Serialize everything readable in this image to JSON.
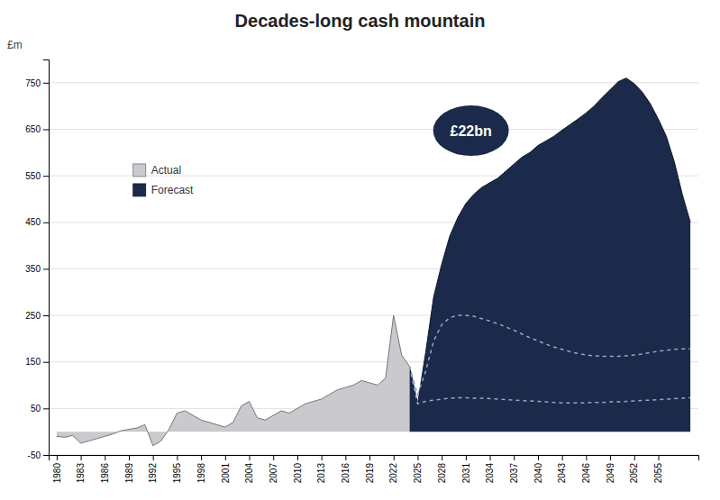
{
  "chart_data": {
    "type": "area",
    "title": "Decades-long cash mountain",
    "ylabel": "£m",
    "annotation": "£22bn",
    "xlim": [
      1979,
      2060
    ],
    "xticks": [
      1980,
      1983,
      1986,
      1989,
      1992,
      1995,
      1998,
      2001,
      2004,
      2007,
      2010,
      2013,
      2016,
      2019,
      2022,
      2025,
      2028,
      2031,
      2034,
      2037,
      2040,
      2043,
      2046,
      2049,
      2052,
      2055
    ],
    "ylim": [
      -50,
      800
    ],
    "yticks": [
      -50,
      50,
      150,
      250,
      350,
      450,
      550,
      650,
      750
    ],
    "grid": true,
    "legend": "upper left",
    "series": [
      {
        "name": "Actual",
        "type": "area",
        "color": "#c9c9ce",
        "x": [
          1980,
          1981,
          1982,
          1983,
          1984,
          1985,
          1986,
          1987,
          1988,
          1989,
          1990,
          1991,
          1992,
          1993,
          1994,
          1995,
          1996,
          1997,
          1998,
          1999,
          2000,
          2001,
          2002,
          2003,
          2004,
          2005,
          2006,
          2007,
          2008,
          2009,
          2010,
          2011,
          2012,
          2013,
          2014,
          2015,
          2016,
          2017,
          2018,
          2019,
          2020,
          2021,
          2022,
          2023,
          2024
        ],
        "values": [
          -10,
          -12,
          -8,
          -25,
          -20,
          -15,
          -10,
          -5,
          2,
          5,
          8,
          15,
          -30,
          -20,
          5,
          40,
          45,
          35,
          25,
          20,
          15,
          10,
          20,
          55,
          65,
          30,
          25,
          35,
          45,
          40,
          50,
          60,
          65,
          70,
          80,
          90,
          95,
          100,
          110,
          105,
          100,
          115,
          250,
          165,
          140
        ]
      },
      {
        "name": "Forecast",
        "type": "area",
        "color": "#1b2a4a",
        "x": [
          2024,
          2025,
          2026,
          2027,
          2028,
          2029,
          2030,
          2031,
          2032,
          2033,
          2034,
          2035,
          2036,
          2037,
          2038,
          2039,
          2040,
          2041,
          2042,
          2043,
          2044,
          2045,
          2046,
          2047,
          2048,
          2049,
          2050,
          2051,
          2052,
          2053,
          2054,
          2055,
          2056,
          2057,
          2058,
          2059
        ],
        "values": [
          140,
          60,
          170,
          290,
          360,
          420,
          460,
          490,
          510,
          525,
          535,
          545,
          560,
          575,
          590,
          600,
          615,
          625,
          635,
          648,
          660,
          672,
          685,
          700,
          718,
          735,
          752,
          760,
          748,
          730,
          705,
          672,
          635,
          580,
          510,
          450
        ]
      },
      {
        "type": "line",
        "color": "#8aaac8",
        "line_style": "dashed",
        "x": [
          2024,
          2025,
          2026,
          2027,
          2028,
          2029,
          2030,
          2031,
          2032,
          2033,
          2034,
          2035,
          2036,
          2037,
          2038,
          2039,
          2040,
          2041,
          2042,
          2043,
          2044,
          2045,
          2046,
          2047,
          2048,
          2049,
          2050,
          2051,
          2052,
          2053,
          2054,
          2055,
          2056,
          2057,
          2058,
          2059
        ],
        "values": [
          140,
          80,
          130,
          195,
          230,
          245,
          250,
          250,
          248,
          243,
          238,
          232,
          225,
          218,
          210,
          202,
          195,
          188,
          182,
          177,
          172,
          168,
          165,
          163,
          162,
          162,
          162,
          163,
          165,
          167,
          170,
          173,
          175,
          177,
          178,
          178
        ]
      },
      {
        "type": "line",
        "color": "#8aaac8",
        "line_style": "dashed",
        "x": [
          2024,
          2025,
          2026,
          2027,
          2028,
          2029,
          2030,
          2031,
          2032,
          2033,
          2034,
          2035,
          2036,
          2037,
          2038,
          2039,
          2040,
          2041,
          2042,
          2043,
          2044,
          2045,
          2046,
          2047,
          2048,
          2049,
          2050,
          2051,
          2052,
          2053,
          2054,
          2055,
          2056,
          2057,
          2058,
          2059
        ],
        "values": [
          140,
          60,
          65,
          68,
          70,
          72,
          73,
          73,
          72,
          72,
          71,
          70,
          69,
          68,
          67,
          66,
          65,
          64,
          63,
          62,
          62,
          62,
          62,
          63,
          63,
          64,
          64,
          65,
          66,
          67,
          68,
          69,
          70,
          71,
          72,
          73
        ]
      }
    ]
  }
}
